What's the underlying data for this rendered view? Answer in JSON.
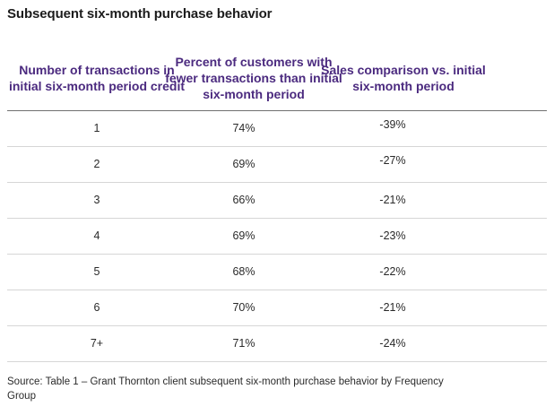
{
  "title": "Subsequent six-month purchase behavior",
  "table": {
    "columns": [
      "Number of transactions in initial six-month period credit",
      "Percent of customers with fewer transactions than initial six-month period",
      "Sales comparison vs. initial six-month period"
    ],
    "rows": [
      {
        "transactions": "1",
        "percent_fewer": "74%",
        "sales_comparison": "-39%"
      },
      {
        "transactions": "2",
        "percent_fewer": "69%",
        "sales_comparison": "-27%"
      },
      {
        "transactions": "3",
        "percent_fewer": "66%",
        "sales_comparison": "-21%"
      },
      {
        "transactions": "4",
        "percent_fewer": "69%",
        "sales_comparison": "-23%"
      },
      {
        "transactions": "5",
        "percent_fewer": "68%",
        "sales_comparison": "-22%"
      },
      {
        "transactions": "6",
        "percent_fewer": "70%",
        "sales_comparison": "-21%"
      },
      {
        "transactions": "7+",
        "percent_fewer": "71%",
        "sales_comparison": "-24%"
      }
    ]
  },
  "source": "Source: Table 1 – Grant Thornton client subsequent six-month purchase behavior by Frequency Group",
  "colors": {
    "header_text": "#4b2a7f",
    "header_rule": "#707070",
    "row_rule": "#d6d6d6"
  }
}
